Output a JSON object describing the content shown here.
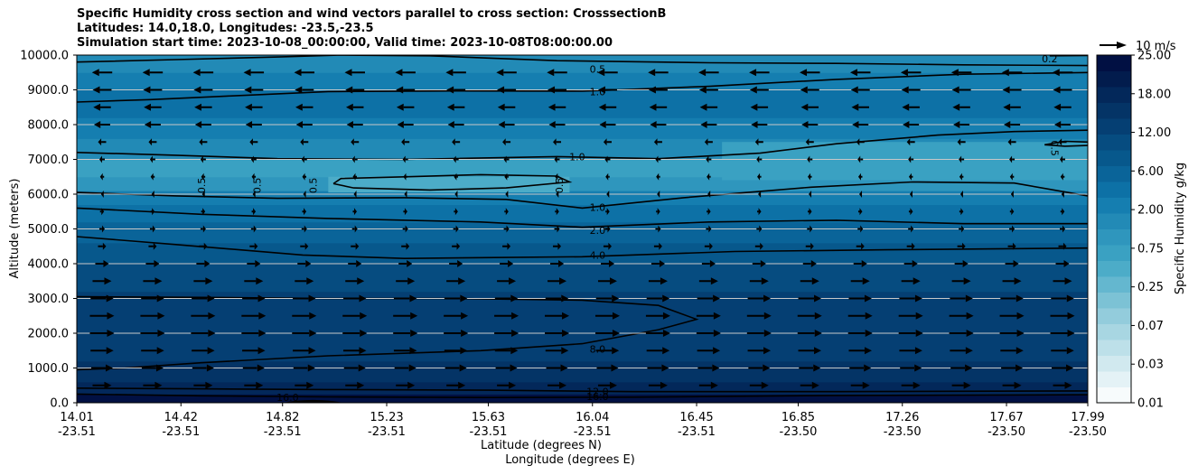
{
  "chart_data": {
    "type": "contour",
    "title_lines": [
      "Specific Humidity cross section and wind vectors parallel to cross section: CrosssectionB",
      "Latitudes: 14.0,18.0, Longitudes: -23.5,-23.5",
      "Simulation start time: 2023-10-08_00:00:00, Valid time: 2023-10-08T08:00:00.00"
    ],
    "ylabel": "Altitude (meters)",
    "xlabel_lat": "Latitude (degrees N)",
    "xlabel_lon": "Longitude (degrees E)",
    "ylim": [
      0,
      10000
    ],
    "y_ticks": [
      "0.0",
      "1000.0",
      "2000.0",
      "3000.0",
      "4000.0",
      "5000.0",
      "6000.0",
      "7000.0",
      "8000.0",
      "9000.0",
      "10000.0"
    ],
    "x_ticks": [
      {
        "lat": "14.01",
        "lon": "-23.51"
      },
      {
        "lat": "14.42",
        "lon": "-23.51"
      },
      {
        "lat": "14.82",
        "lon": "-23.51"
      },
      {
        "lat": "15.23",
        "lon": "-23.51"
      },
      {
        "lat": "15.63",
        "lon": "-23.51"
      },
      {
        "lat": "16.04",
        "lon": "-23.51"
      },
      {
        "lat": "16.45",
        "lon": "-23.51"
      },
      {
        "lat": "16.85",
        "lon": "-23.50"
      },
      {
        "lat": "17.26",
        "lon": "-23.50"
      },
      {
        "lat": "17.67",
        "lon": "-23.50"
      },
      {
        "lat": "17.99",
        "lon": "-23.50"
      }
    ],
    "lat_range": [
      14.01,
      17.99
    ],
    "contour_labels": [
      {
        "text": "0.5",
        "lat": 16.06,
        "alt": 9600
      },
      {
        "text": "1.0",
        "lat": 16.06,
        "alt": 8950
      },
      {
        "text": "0.2",
        "lat": 17.84,
        "alt": 9900
      },
      {
        "text": "1.0",
        "lat": 15.98,
        "alt": 7080
      },
      {
        "text": "0.5",
        "lat": 17.86,
        "alt": 7320
      },
      {
        "text": "0.5",
        "lat": 14.5,
        "alt": 6250
      },
      {
        "text": "0.5",
        "lat": 14.72,
        "alt": 6250
      },
      {
        "text": "0.5",
        "lat": 14.94,
        "alt": 6250
      },
      {
        "text": "0.5",
        "lat": 15.91,
        "alt": 6250
      },
      {
        "text": "1.0",
        "lat": 16.06,
        "alt": 5620
      },
      {
        "text": "2.0",
        "lat": 16.06,
        "alt": 4960
      },
      {
        "text": "4.0",
        "lat": 16.06,
        "alt": 4250
      },
      {
        "text": "8.0",
        "lat": 16.06,
        "alt": 1550
      },
      {
        "text": "12.0",
        "lat": 16.06,
        "alt": 320
      },
      {
        "text": "16.0",
        "lat": 16.06,
        "alt": 180
      },
      {
        "text": "16.0",
        "lat": 14.84,
        "alt": 150
      }
    ],
    "colorbar": {
      "label": "Specific Humidity g/kg",
      "tick_labels": [
        "0.01",
        "0.03",
        "0.07",
        "0.25",
        "0.75",
        "2.00",
        "6.00",
        "12.00",
        "18.00",
        "25.00"
      ],
      "colors": [
        "#f7fbfc",
        "#e4f2f6",
        "#d1e9ef",
        "#bde0e9",
        "#a8d6e2",
        "#93ccdc",
        "#7cc2d5",
        "#64b7cf",
        "#4cacc8",
        "#3aa1c2",
        "#2f96bd",
        "#228ab6",
        "#157eb0",
        "#0d71a6",
        "#0a6499",
        "#07588c",
        "#064c80",
        "#053f73",
        "#043466",
        "#03285a",
        "#021c4d",
        "#011043"
      ]
    },
    "quiver_key": "10 m/s",
    "wind_profile": [
      {
        "alt": 9500,
        "u": -7.5
      },
      {
        "alt": 9000,
        "u": -7.0
      },
      {
        "alt": 8500,
        "u": -6.5
      },
      {
        "alt": 8000,
        "u": -6.0
      },
      {
        "alt": 7500,
        "u": -3.0
      },
      {
        "alt": 7000,
        "u": -2.0
      },
      {
        "alt": 6500,
        "u": -1.5
      },
      {
        "alt": 6000,
        "u": -0.8
      },
      {
        "alt": 5500,
        "u": 1.5
      },
      {
        "alt": 5000,
        "u": 2.0
      },
      {
        "alt": 4500,
        "u": 3.0
      },
      {
        "alt": 4000,
        "u": 5.0
      },
      {
        "alt": 3500,
        "u": 7.0
      },
      {
        "alt": 3000,
        "u": 8.5
      },
      {
        "alt": 2500,
        "u": 9.0
      },
      {
        "alt": 2000,
        "u": 9.0
      },
      {
        "alt": 1500,
        "u": 8.5
      },
      {
        "alt": 1000,
        "u": 8.0
      },
      {
        "alt": 500,
        "u": 7.0
      }
    ]
  }
}
